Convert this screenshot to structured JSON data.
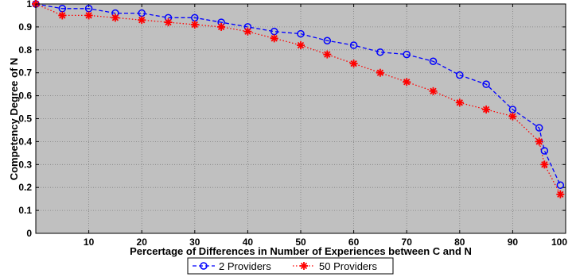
{
  "chart_data": {
    "type": "line",
    "title": "",
    "xlabel": "Percertage of Differences in Number of Experiences between C and N",
    "ylabel": "Competency Degree of N",
    "xlim": [
      0,
      100
    ],
    "ylim": [
      0,
      1
    ],
    "xticks": [
      10,
      20,
      30,
      40,
      50,
      60,
      70,
      80,
      90,
      100
    ],
    "yticks": [
      0,
      0.1,
      0.2,
      0.3,
      0.4,
      0.5,
      0.6,
      0.7,
      0.8,
      0.9,
      1
    ],
    "grid": true,
    "background_color": "#c0c0c0",
    "legend_position": "bottom-center",
    "series": [
      {
        "name": "2 Providers",
        "color": "#0000ff",
        "marker": "circle",
        "line_style": "dashed",
        "x": [
          0,
          5,
          10,
          15,
          20,
          25,
          30,
          35,
          40,
          45,
          50,
          55,
          60,
          65,
          70,
          75,
          80,
          85,
          90,
          95,
          96,
          99
        ],
        "y": [
          1.0,
          0.98,
          0.98,
          0.96,
          0.96,
          0.94,
          0.94,
          0.92,
          0.9,
          0.88,
          0.87,
          0.84,
          0.82,
          0.79,
          0.78,
          0.75,
          0.69,
          0.65,
          0.54,
          0.46,
          0.36,
          0.21
        ]
      },
      {
        "name": "50 Providers",
        "color": "#ff0000",
        "marker": "star",
        "line_style": "dotted",
        "x": [
          0,
          5,
          10,
          15,
          20,
          25,
          30,
          35,
          40,
          45,
          50,
          55,
          60,
          65,
          70,
          75,
          80,
          85,
          90,
          95,
          96,
          99
        ],
        "y": [
          1.0,
          0.95,
          0.95,
          0.94,
          0.93,
          0.92,
          0.91,
          0.9,
          0.88,
          0.85,
          0.82,
          0.78,
          0.74,
          0.7,
          0.66,
          0.62,
          0.57,
          0.54,
          0.51,
          0.4,
          0.3,
          0.17
        ]
      }
    ]
  }
}
